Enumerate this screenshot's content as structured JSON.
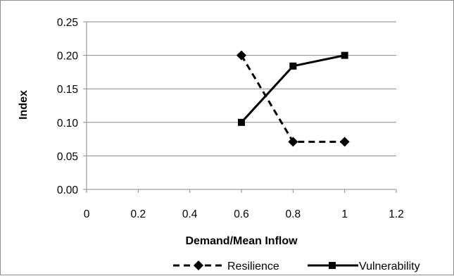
{
  "chart_data": {
    "type": "line",
    "title": "",
    "xlabel": "Demand/Mean Inflow",
    "ylabel": "Index",
    "xlim": [
      0,
      1.2
    ],
    "ylim": [
      0,
      0.25
    ],
    "x_ticks": [
      "0",
      "0.2",
      "0.4",
      "0.6",
      "0.8",
      "1",
      "1.2"
    ],
    "y_ticks": [
      "0.00",
      "0.05",
      "0.10",
      "0.15",
      "0.20",
      "0.25"
    ],
    "grid": "horizontal",
    "legend_position": "bottom",
    "series": [
      {
        "name": "Resilience",
        "x": [
          0.6,
          0.8,
          1.0
        ],
        "y": [
          0.2,
          0.071,
          0.071
        ],
        "line_style": "dashed",
        "marker": "diamond",
        "color": "#000000"
      },
      {
        "name": "Vulnerability",
        "x": [
          0.6,
          0.8,
          1.0
        ],
        "y": [
          0.1,
          0.184,
          0.2
        ],
        "line_style": "solid",
        "marker": "square",
        "color": "#000000"
      }
    ]
  }
}
